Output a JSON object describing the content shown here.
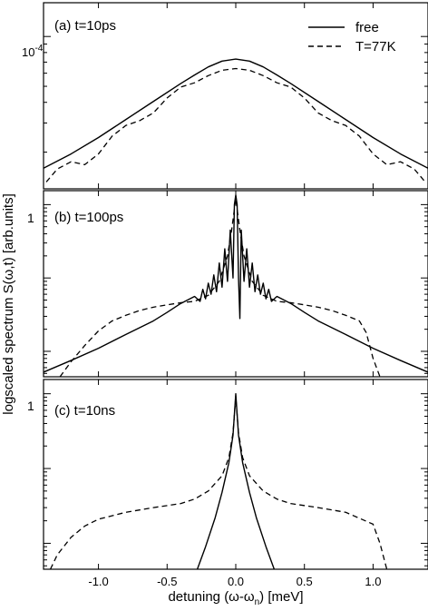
{
  "chart_data": [
    {
      "type": "line",
      "panel_label": "(a) t=10ps",
      "y_scale": "log",
      "ylim": [
        1.2e-05,
        0.00016
      ],
      "y_tick_label": "10",
      "y_tick_exponent": "-4",
      "y_tick_value": 0.0001,
      "x_tick_labels_visible": false,
      "series": [
        {
          "name": "free",
          "style": "solid",
          "points": [
            [
              -1.4,
              1.6e-05
            ],
            [
              -1.2,
              1.95e-05
            ],
            [
              -1.0,
              2.45e-05
            ],
            [
              -0.8,
              3.15e-05
            ],
            [
              -0.6,
              4.05e-05
            ],
            [
              -0.4,
              5.2e-05
            ],
            [
              -0.3,
              5.85e-05
            ],
            [
              -0.2,
              6.55e-05
            ],
            [
              -0.1,
              7.1e-05
            ],
            [
              0.0,
              7.3e-05
            ],
            [
              0.1,
              7.1e-05
            ],
            [
              0.2,
              6.55e-05
            ],
            [
              0.3,
              5.85e-05
            ],
            [
              0.4,
              5.2e-05
            ],
            [
              0.6,
              4.05e-05
            ],
            [
              0.8,
              3.15e-05
            ],
            [
              1.0,
              2.45e-05
            ],
            [
              1.2,
              1.95e-05
            ],
            [
              1.4,
              1.6e-05
            ]
          ]
        },
        {
          "name": "T=77K",
          "style": "dashed",
          "points": [
            [
              -1.38,
              1.32e-05
            ],
            [
              -1.3,
              1.58e-05
            ],
            [
              -1.2,
              1.75e-05
            ],
            [
              -1.1,
              1.68e-05
            ],
            [
              -1.0,
              1.95e-05
            ],
            [
              -0.9,
              2.5e-05
            ],
            [
              -0.8,
              2.9e-05
            ],
            [
              -0.7,
              3.1e-05
            ],
            [
              -0.6,
              3.45e-05
            ],
            [
              -0.5,
              4.25e-05
            ],
            [
              -0.4,
              4.95e-05
            ],
            [
              -0.3,
              5.25e-05
            ],
            [
              -0.2,
              5.8e-05
            ],
            [
              -0.1,
              6.25e-05
            ],
            [
              0.0,
              6.4e-05
            ],
            [
              0.1,
              6.25e-05
            ],
            [
              0.2,
              5.8e-05
            ],
            [
              0.3,
              5.25e-05
            ],
            [
              0.4,
              4.95e-05
            ],
            [
              0.5,
              4.25e-05
            ],
            [
              0.6,
              3.45e-05
            ],
            [
              0.7,
              3.1e-05
            ],
            [
              0.8,
              2.9e-05
            ],
            [
              0.9,
              2.5e-05
            ],
            [
              1.0,
              1.95e-05
            ],
            [
              1.1,
              1.68e-05
            ],
            [
              1.2,
              1.75e-05
            ],
            [
              1.3,
              1.58e-05
            ],
            [
              1.38,
              1.32e-05
            ]
          ]
        }
      ]
    },
    {
      "type": "line",
      "panel_label": "(b) t=100ps",
      "y_scale": "log",
      "ylim": [
        0.0045,
        1.55
      ],
      "y_tick_label": "1",
      "y_tick_value": 1,
      "x_tick_labels_visible": false,
      "series": [
        {
          "name": "free",
          "style": "solid",
          "points": [
            [
              -1.4,
              0.0052
            ],
            [
              -1.2,
              0.0075
            ],
            [
              -1.0,
              0.011
            ],
            [
              -0.8,
              0.017
            ],
            [
              -0.6,
              0.026
            ],
            [
              -0.5,
              0.034
            ],
            [
              -0.4,
              0.045
            ],
            [
              -0.3,
              0.056
            ],
            [
              -0.26,
              0.048
            ],
            [
              -0.24,
              0.07
            ],
            [
              -0.22,
              0.052
            ],
            [
              -0.2,
              0.085
            ],
            [
              -0.18,
              0.06
            ],
            [
              -0.16,
              0.11
            ],
            [
              -0.14,
              0.065
            ],
            [
              -0.12,
              0.16
            ],
            [
              -0.1,
              0.075
            ],
            [
              -0.08,
              0.25
            ],
            [
              -0.06,
              0.09
            ],
            [
              -0.04,
              0.45
            ],
            [
              -0.02,
              0.1
            ],
            [
              -0.01,
              1.0
            ],
            [
              0.0,
              1.35
            ],
            [
              0.01,
              1.0
            ],
            [
              0.02,
              0.1
            ],
            [
              0.03,
              0.028
            ],
            [
              0.04,
              0.45
            ],
            [
              0.06,
              0.09
            ],
            [
              0.08,
              0.25
            ],
            [
              0.1,
              0.075
            ],
            [
              0.12,
              0.16
            ],
            [
              0.14,
              0.065
            ],
            [
              0.16,
              0.11
            ],
            [
              0.18,
              0.06
            ],
            [
              0.2,
              0.085
            ],
            [
              0.22,
              0.052
            ],
            [
              0.24,
              0.07
            ],
            [
              0.26,
              0.048
            ],
            [
              0.3,
              0.056
            ],
            [
              0.4,
              0.045
            ],
            [
              0.5,
              0.034
            ],
            [
              0.6,
              0.026
            ],
            [
              0.8,
              0.017
            ],
            [
              1.0,
              0.011
            ],
            [
              1.2,
              0.0075
            ],
            [
              1.4,
              0.0052
            ]
          ]
        },
        {
          "name": "T=77K",
          "style": "dashed",
          "points": [
            [
              -1.28,
              0.0045
            ],
            [
              -1.2,
              0.0072
            ],
            [
              -1.1,
              0.012
            ],
            [
              -1.0,
              0.019
            ],
            [
              -0.9,
              0.026
            ],
            [
              -0.8,
              0.031
            ],
            [
              -0.7,
              0.036
            ],
            [
              -0.6,
              0.04
            ],
            [
              -0.5,
              0.043
            ],
            [
              -0.4,
              0.046
            ],
            [
              -0.3,
              0.048
            ],
            [
              -0.2,
              0.058
            ],
            [
              -0.12,
              0.09
            ],
            [
              -0.06,
              0.2
            ],
            [
              -0.03,
              0.45
            ],
            [
              0.0,
              1.2
            ],
            [
              0.03,
              0.45
            ],
            [
              0.06,
              0.2
            ],
            [
              0.12,
              0.09
            ],
            [
              0.2,
              0.058
            ],
            [
              0.3,
              0.048
            ],
            [
              0.4,
              0.046
            ],
            [
              0.5,
              0.043
            ],
            [
              0.6,
              0.04
            ],
            [
              0.7,
              0.036
            ],
            [
              0.8,
              0.031
            ],
            [
              0.9,
              0.026
            ],
            [
              0.95,
              0.018
            ],
            [
              1.0,
              0.008
            ],
            [
              1.05,
              0.0045
            ]
          ]
        }
      ]
    },
    {
      "type": "line",
      "panel_label": "(c) t=10ns",
      "y_scale": "log",
      "ylim": [
        0.0045,
        1.55
      ],
      "y_tick_label": "1",
      "y_tick_value": 1,
      "x_tick_labels_visible": true,
      "xlabel": "detuning (ω-ω",
      "xlabel_sub": "n",
      "xlabel_end": ") [meV]",
      "series": [
        {
          "name": "free",
          "style": "solid",
          "points": [
            [
              -0.28,
              0.0045
            ],
            [
              -0.22,
              0.009
            ],
            [
              -0.15,
              0.022
            ],
            [
              -0.1,
              0.048
            ],
            [
              -0.05,
              0.12
            ],
            [
              -0.02,
              0.28
            ],
            [
              0.0,
              1.0
            ],
            [
              0.02,
              0.28
            ],
            [
              0.05,
              0.12
            ],
            [
              0.1,
              0.048
            ],
            [
              0.15,
              0.022
            ],
            [
              0.22,
              0.009
            ],
            [
              0.28,
              0.0045
            ]
          ]
        },
        {
          "name": "T=77K",
          "style": "dashed",
          "points": [
            [
              -1.35,
              0.0045
            ],
            [
              -1.3,
              0.007
            ],
            [
              -1.2,
              0.012
            ],
            [
              -1.1,
              0.017
            ],
            [
              -1.0,
              0.021
            ],
            [
              -0.8,
              0.026
            ],
            [
              -0.6,
              0.03
            ],
            [
              -0.4,
              0.034
            ],
            [
              -0.3,
              0.039
            ],
            [
              -0.2,
              0.05
            ],
            [
              -0.1,
              0.08
            ],
            [
              -0.05,
              0.14
            ],
            [
              -0.02,
              0.3
            ],
            [
              0.0,
              0.9
            ],
            [
              0.02,
              0.3
            ],
            [
              0.05,
              0.14
            ],
            [
              0.1,
              0.08
            ],
            [
              0.2,
              0.05
            ],
            [
              0.3,
              0.039
            ],
            [
              0.4,
              0.034
            ],
            [
              0.6,
              0.03
            ],
            [
              0.8,
              0.026
            ],
            [
              1.0,
              0.018
            ],
            [
              1.05,
              0.01
            ],
            [
              1.1,
              0.0045
            ]
          ]
        }
      ]
    }
  ],
  "shared": {
    "xlim": [
      -1.4,
      1.4
    ],
    "x_ticks": [
      -1.0,
      -0.5,
      0.0,
      0.5,
      1.0
    ],
    "x_tick_labels": [
      "-1.0",
      "-0.5",
      "0.0",
      "0.5",
      "1.0"
    ],
    "ylabel": "logscaled spectrum S(ω,t) [arb.units]",
    "legend": {
      "placement": "top-right",
      "entries": [
        {
          "label": "free",
          "style": "solid"
        },
        {
          "label": "T=77K",
          "style": "dashed"
        }
      ]
    }
  }
}
